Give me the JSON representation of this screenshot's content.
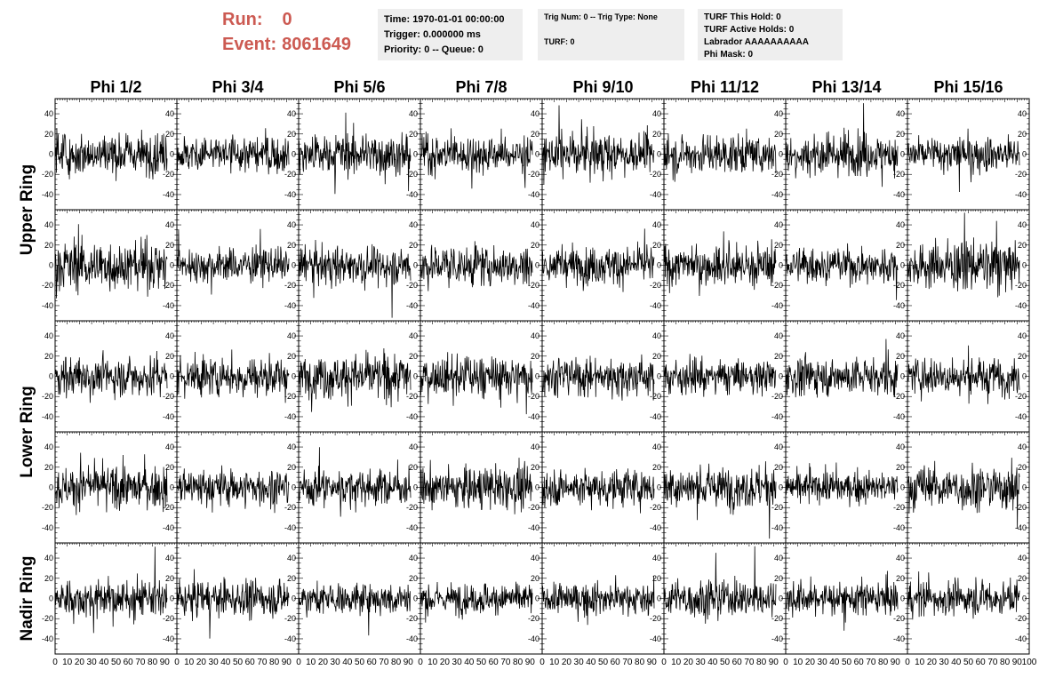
{
  "header": {
    "run_label": "Run:",
    "run_value": "0",
    "event_label": "Event:",
    "event_value": "8061649",
    "time_info": [
      "Time: 1970-01-01 00:00:00",
      "Trigger: 0.000000 ms",
      "Priority: 0 -- Queue: 0"
    ],
    "trig_info": [
      "Trig Num: 0 -- Trig Type: None",
      "",
      "TURF: 0"
    ],
    "turf_info": [
      "TURF This Hold: 0",
      "TURF Active Holds: 0",
      "Labrador AAAAAAAAAA",
      "Phi Mask: 0"
    ],
    "colors": {
      "run_text": "#cc5a52",
      "info_bg": "#eeeeee",
      "trace": "#000000"
    }
  },
  "chart_data": {
    "type": "line",
    "columns": [
      "Phi 1/2",
      "Phi 3/4",
      "Phi 5/6",
      "Phi 7/8",
      "Phi 9/10",
      "Phi 11/12",
      "Phi 13/14",
      "Phi 15/16"
    ],
    "row_groups": [
      {
        "label": "Upper Ring",
        "rows": 2
      },
      {
        "label": "Lower Ring",
        "rows": 2
      },
      {
        "label": "Nadir Ring",
        "rows": 1
      }
    ],
    "rows": 5,
    "xlim": [
      0,
      100
    ],
    "ylim": [
      -55,
      55
    ],
    "y_ticks": [
      -40,
      -20,
      0,
      20,
      40
    ],
    "x_tick_labels": [
      "0",
      "10",
      "20",
      "30",
      "40",
      "50",
      "60",
      "70",
      "80",
      "90",
      "100"
    ],
    "samples_per_trace": 260,
    "amplitude_rms": [
      [
        12,
        11,
        12,
        11,
        12,
        11,
        12,
        11
      ],
      [
        14,
        10,
        11,
        12,
        11,
        12,
        10,
        14
      ],
      [
        12,
        12,
        13,
        12,
        11,
        10,
        11,
        11
      ],
      [
        12,
        11,
        10,
        12,
        11,
        12,
        9,
        13
      ],
      [
        11,
        10,
        9,
        9,
        9,
        11,
        10,
        10
      ]
    ],
    "grid": false,
    "legend": "none"
  }
}
